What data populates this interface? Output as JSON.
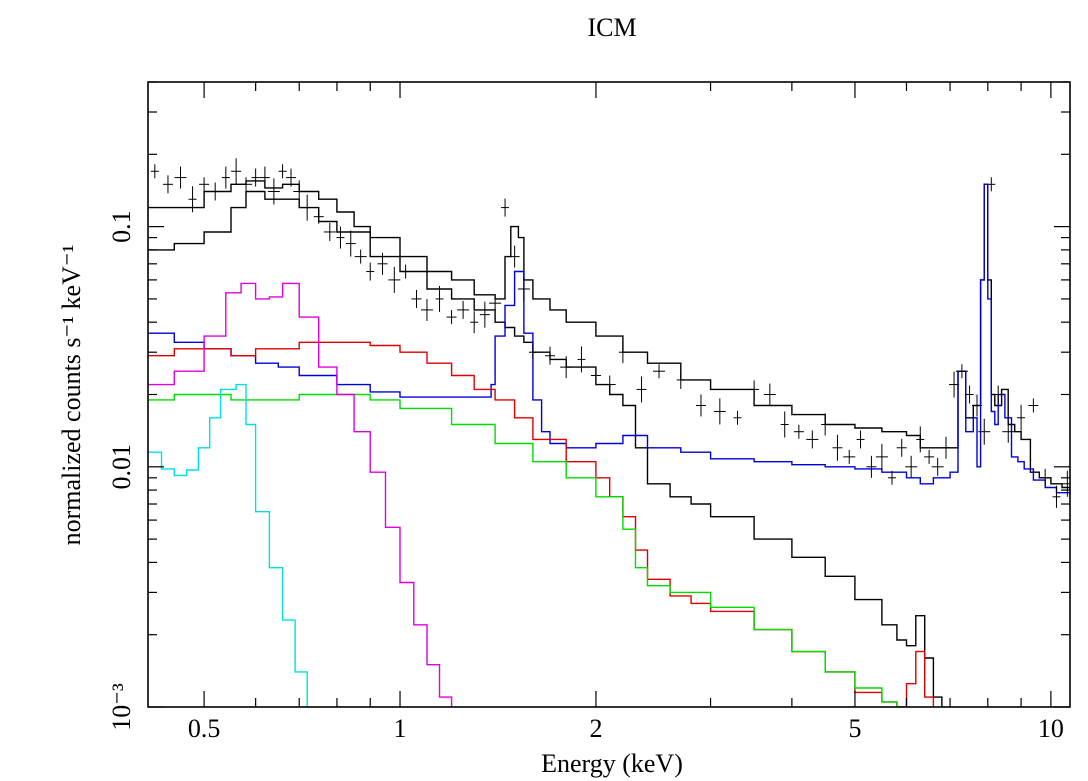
{
  "chart_data": {
    "type": "line",
    "title": "ICM",
    "xlabel": "Energy (keV)",
    "ylabel": "normalized counts s⁻¹ keV⁻¹",
    "xscale": "log",
    "yscale": "log",
    "xlim": [
      0.41,
      10.7
    ],
    "ylim": [
      0.001,
      0.4
    ],
    "x_tick_labels": [
      {
        "value": 0.5,
        "label": "0.5"
      },
      {
        "value": 1,
        "label": "1"
      },
      {
        "value": 2,
        "label": "2"
      },
      {
        "value": 5,
        "label": "5"
      },
      {
        "value": 10,
        "label": "10"
      }
    ],
    "y_tick_labels": [
      {
        "value": 0.001,
        "label": "10⁻³"
      },
      {
        "value": 0.01,
        "label": "0.01"
      },
      {
        "value": 0.1,
        "label": "0.1"
      }
    ],
    "grid": false,
    "legend": "none",
    "data_points": {
      "color": "#000000",
      "x": [
        0.42,
        0.44,
        0.46,
        0.48,
        0.5,
        0.52,
        0.54,
        0.56,
        0.58,
        0.6,
        0.62,
        0.64,
        0.66,
        0.68,
        0.7,
        0.72,
        0.75,
        0.78,
        0.81,
        0.84,
        0.87,
        0.9,
        0.94,
        0.98,
        1.02,
        1.06,
        1.1,
        1.15,
        1.2,
        1.25,
        1.3,
        1.35,
        1.4,
        1.45,
        1.5,
        1.55,
        1.6,
        1.7,
        1.8,
        1.9,
        2.0,
        2.1,
        2.2,
        2.35,
        2.5,
        2.7,
        2.9,
        3.1,
        3.3,
        3.5,
        3.7,
        3.9,
        4.1,
        4.3,
        4.5,
        4.7,
        4.9,
        5.1,
        5.3,
        5.5,
        5.7,
        5.9,
        6.1,
        6.3,
        6.5,
        6.7,
        6.9,
        7.1,
        7.3,
        7.5,
        7.7,
        7.9,
        8.1,
        8.3,
        8.6,
        9.0,
        9.4,
        9.8,
        10.2,
        10.6
      ],
      "y": [
        0.17,
        0.15,
        0.16,
        0.13,
        0.15,
        0.14,
        0.16,
        0.17,
        0.15,
        0.16,
        0.16,
        0.14,
        0.17,
        0.16,
        0.14,
        0.12,
        0.11,
        0.095,
        0.09,
        0.085,
        0.075,
        0.065,
        0.07,
        0.06,
        0.065,
        0.05,
        0.045,
        0.05,
        0.042,
        0.045,
        0.04,
        0.043,
        0.048,
        0.12,
        0.075,
        0.055,
        0.03,
        0.029,
        0.026,
        0.028,
        0.024,
        0.022,
        0.03,
        0.021,
        0.025,
        0.023,
        0.018,
        0.017,
        0.016,
        0.021,
        0.02,
        0.015,
        0.014,
        0.013,
        0.015,
        0.012,
        0.011,
        0.013,
        0.01,
        0.011,
        0.009,
        0.012,
        0.01,
        0.013,
        0.011,
        0.01,
        0.012,
        0.022,
        0.025,
        0.02,
        0.018,
        0.014,
        0.15,
        0.02,
        0.014,
        0.016,
        0.018,
        0.009,
        0.0075,
        0.0085
      ]
    },
    "series": [
      {
        "color": "#000000",
        "x": [
          0.41,
          0.45,
          0.5,
          0.55,
          0.58,
          0.62,
          0.66,
          0.7,
          0.75,
          0.8,
          0.85,
          0.9,
          1.0,
          1.1,
          1.2,
          1.3,
          1.4,
          1.45,
          1.48,
          1.52,
          1.55,
          1.6,
          1.7,
          1.8,
          2.0,
          2.2,
          2.4,
          2.7,
          3.0,
          3.5,
          4.0,
          4.5,
          5.0,
          5.5,
          6.0,
          6.3,
          6.6,
          7.0,
          7.2,
          7.4,
          7.6,
          7.8,
          7.9,
          8.0,
          8.1,
          8.2,
          8.4,
          8.6,
          8.8,
          9.0,
          9.3,
          9.6,
          10.0,
          10.4,
          10.7
        ],
        "y": [
          0.12,
          0.12,
          0.14,
          0.15,
          0.155,
          0.145,
          0.15,
          0.14,
          0.13,
          0.115,
          0.1,
          0.09,
          0.075,
          0.065,
          0.06,
          0.052,
          0.05,
          0.075,
          0.1,
          0.09,
          0.06,
          0.05,
          0.045,
          0.04,
          0.035,
          0.03,
          0.027,
          0.023,
          0.021,
          0.018,
          0.0165,
          0.015,
          0.0145,
          0.014,
          0.0135,
          0.012,
          0.012,
          0.012,
          0.025,
          0.016,
          0.018,
          0.06,
          0.15,
          0.06,
          0.02,
          0.018,
          0.021,
          0.015,
          0.014,
          0.013,
          0.0095,
          0.009,
          0.0085,
          0.0082,
          0.008
        ]
      },
      {
        "color": "#000000",
        "x": [
          0.41,
          0.45,
          0.5,
          0.55,
          0.58,
          0.62,
          0.66,
          0.7,
          0.75,
          0.8,
          0.9,
          1.0,
          1.1,
          1.2,
          1.3,
          1.4,
          1.45,
          1.5,
          1.55,
          1.6,
          1.7,
          1.8,
          2.0,
          2.1,
          2.2,
          2.3,
          2.4,
          2.6,
          2.8,
          3.0,
          3.5,
          4.0,
          4.5,
          5.0,
          5.5,
          5.8,
          6.0,
          6.2,
          6.4,
          6.6,
          6.8
        ],
        "y": [
          0.08,
          0.085,
          0.095,
          0.12,
          0.14,
          0.13,
          0.13,
          0.12,
          0.105,
          0.095,
          0.075,
          0.065,
          0.055,
          0.05,
          0.045,
          0.04,
          0.038,
          0.035,
          0.033,
          0.03,
          0.028,
          0.026,
          0.022,
          0.02,
          0.018,
          0.012,
          0.0085,
          0.0075,
          0.007,
          0.0062,
          0.005,
          0.0042,
          0.0035,
          0.0028,
          0.0022,
          0.0019,
          0.0018,
          0.0024,
          0.0016,
          0.0011,
          0.001
        ]
      },
      {
        "color": "#0000dd",
        "x": [
          0.41,
          0.45,
          0.5,
          0.55,
          0.6,
          0.65,
          0.7,
          0.8,
          0.9,
          1.0,
          1.1,
          1.2,
          1.3,
          1.38,
          1.4,
          1.45,
          1.5,
          1.55,
          1.6,
          1.65,
          1.7,
          1.8,
          2.0,
          2.2,
          2.4,
          2.7,
          3.0,
          3.5,
          4.0,
          4.5,
          5.0,
          5.5,
          6.0,
          6.3,
          6.6,
          7.0,
          7.2,
          7.4,
          7.6,
          7.7,
          7.8,
          7.9,
          8.0,
          8.1,
          8.2,
          8.3,
          8.5,
          8.7,
          8.9,
          9.1,
          9.4,
          9.8,
          10.2,
          10.7
        ],
        "y": [
          0.036,
          0.033,
          0.031,
          0.029,
          0.027,
          0.026,
          0.024,
          0.022,
          0.0205,
          0.0195,
          0.0195,
          0.0195,
          0.0195,
          0.022,
          0.035,
          0.047,
          0.065,
          0.036,
          0.019,
          0.014,
          0.0125,
          0.012,
          0.0125,
          0.0135,
          0.012,
          0.0115,
          0.0108,
          0.0105,
          0.0102,
          0.01,
          0.0098,
          0.0095,
          0.009,
          0.0085,
          0.009,
          0.0095,
          0.025,
          0.014,
          0.016,
          0.01,
          0.06,
          0.15,
          0.05,
          0.017,
          0.015,
          0.02,
          0.016,
          0.011,
          0.0105,
          0.0098,
          0.0088,
          0.0082,
          0.0078,
          0.0075
        ]
      },
      {
        "color": "#e00000",
        "x": [
          0.41,
          0.45,
          0.5,
          0.55,
          0.6,
          0.7,
          0.8,
          0.9,
          1.0,
          1.1,
          1.2,
          1.3,
          1.4,
          1.5,
          1.6,
          1.8,
          2.0,
          2.1,
          2.2,
          2.3,
          2.4,
          2.6,
          2.8,
          3.0,
          3.5,
          4.0,
          4.5,
          5.0,
          5.5,
          5.8,
          6.0,
          6.2,
          6.4,
          6.6
        ],
        "y": [
          0.029,
          0.031,
          0.031,
          0.029,
          0.031,
          0.033,
          0.033,
          0.032,
          0.03,
          0.027,
          0.024,
          0.021,
          0.019,
          0.016,
          0.013,
          0.0105,
          0.009,
          0.0075,
          0.0062,
          0.0045,
          0.0034,
          0.0029,
          0.0027,
          0.0025,
          0.0021,
          0.0017,
          0.0014,
          0.00115,
          0.00105,
          0.001,
          0.00125,
          0.0017,
          0.0011,
          0.001
        ]
      },
      {
        "color": "#00dd00",
        "x": [
          0.41,
          0.45,
          0.5,
          0.55,
          0.6,
          0.7,
          0.8,
          0.9,
          1.0,
          1.2,
          1.4,
          1.6,
          1.8,
          2.0,
          2.2,
          2.3,
          2.4,
          2.6,
          3.0,
          3.5,
          4.0,
          4.5,
          5.0,
          5.5,
          5.8
        ],
        "y": [
          0.019,
          0.02,
          0.02,
          0.019,
          0.019,
          0.02,
          0.02,
          0.019,
          0.0175,
          0.015,
          0.0125,
          0.0105,
          0.009,
          0.0075,
          0.0055,
          0.0038,
          0.0032,
          0.003,
          0.0026,
          0.0021,
          0.0017,
          0.0014,
          0.0012,
          0.00105,
          0.001
        ]
      },
      {
        "color": "#e000e0",
        "x": [
          0.41,
          0.45,
          0.5,
          0.54,
          0.57,
          0.6,
          0.63,
          0.66,
          0.7,
          0.75,
          0.8,
          0.85,
          0.9,
          0.95,
          1.0,
          1.05,
          1.1,
          1.15,
          1.2
        ],
        "y": [
          0.022,
          0.025,
          0.035,
          0.053,
          0.058,
          0.05,
          0.051,
          0.058,
          0.042,
          0.026,
          0.02,
          0.014,
          0.0095,
          0.0056,
          0.0033,
          0.0022,
          0.0015,
          0.0011,
          0.001
        ]
      },
      {
        "color": "#00e0e0",
        "x": [
          0.41,
          0.43,
          0.45,
          0.47,
          0.49,
          0.51,
          0.53,
          0.56,
          0.58,
          0.6,
          0.63,
          0.66,
          0.69,
          0.72
        ],
        "y": [
          0.0115,
          0.0098,
          0.0092,
          0.0097,
          0.012,
          0.016,
          0.021,
          0.022,
          0.015,
          0.0065,
          0.0038,
          0.0023,
          0.0014,
          0.001
        ]
      }
    ]
  }
}
